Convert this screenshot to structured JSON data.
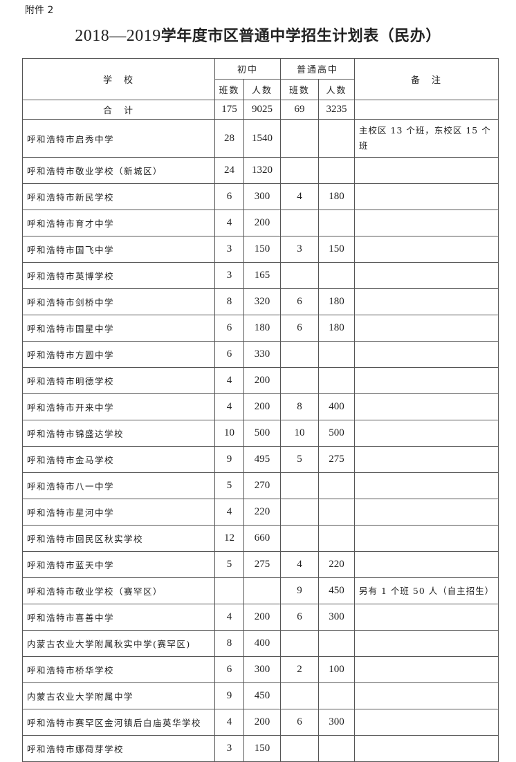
{
  "attachment_label": "附件 2",
  "title_years": "2018—2019",
  "title_text": "学年度市区普通中学招生计划表（民办）",
  "header": {
    "school": "学　校",
    "junior": "初中",
    "senior": "普通高中",
    "notes": "备　注",
    "classes": "班数",
    "students": "人数"
  },
  "total": {
    "label": "合　计",
    "jc": "175",
    "js": "9025",
    "sc": "69",
    "ss": "3235",
    "note": ""
  },
  "rows": [
    {
      "school": "呼和浩特市启秀中学",
      "jc": "28",
      "js": "1540",
      "sc": "",
      "ss": "",
      "note": "主校区 13 个班，东校区 15 个班"
    },
    {
      "school": "呼和浩特市敬业学校（新城区）",
      "jc": "24",
      "js": "1320",
      "sc": "",
      "ss": "",
      "note": ""
    },
    {
      "school": "呼和浩特市新民学校",
      "jc": "6",
      "js": "300",
      "sc": "4",
      "ss": "180",
      "note": ""
    },
    {
      "school": "呼和浩特市育才中学",
      "jc": "4",
      "js": "200",
      "sc": "",
      "ss": "",
      "note": ""
    },
    {
      "school": "呼和浩特市国飞中学",
      "jc": "3",
      "js": "150",
      "sc": "3",
      "ss": "150",
      "note": ""
    },
    {
      "school": "呼和浩特市英博学校",
      "jc": "3",
      "js": "165",
      "sc": "",
      "ss": "",
      "note": ""
    },
    {
      "school": "呼和浩特市剑桥中学",
      "jc": "8",
      "js": "320",
      "sc": "6",
      "ss": "180",
      "note": ""
    },
    {
      "school": "呼和浩特市国星中学",
      "jc": "6",
      "js": "180",
      "sc": "6",
      "ss": "180",
      "note": ""
    },
    {
      "school": "呼和浩特市方圆中学",
      "jc": "6",
      "js": "330",
      "sc": "",
      "ss": "",
      "note": ""
    },
    {
      "school": "呼和浩特市明德学校",
      "jc": "4",
      "js": "200",
      "sc": "",
      "ss": "",
      "note": ""
    },
    {
      "school": "呼和浩特市开来中学",
      "jc": "4",
      "js": "200",
      "sc": "8",
      "ss": "400",
      "note": ""
    },
    {
      "school": "呼和浩特市锦盛达学校",
      "jc": "10",
      "js": "500",
      "sc": "10",
      "ss": "500",
      "note": ""
    },
    {
      "school": "呼和浩特市金马学校",
      "jc": "9",
      "js": "495",
      "sc": "5",
      "ss": "275",
      "note": ""
    },
    {
      "school": "呼和浩特市八一中学",
      "jc": "5",
      "js": "270",
      "sc": "",
      "ss": "",
      "note": ""
    },
    {
      "school": "呼和浩特市星河中学",
      "jc": "4",
      "js": "220",
      "sc": "",
      "ss": "",
      "note": ""
    },
    {
      "school": "呼和浩特市回民区秋实学校",
      "jc": "12",
      "js": "660",
      "sc": "",
      "ss": "",
      "note": ""
    },
    {
      "school": "呼和浩特市蓝天中学",
      "jc": "5",
      "js": "275",
      "sc": "4",
      "ss": "220",
      "note": ""
    },
    {
      "school": "呼和浩特市敬业学校（赛罕区）",
      "jc": "",
      "js": "",
      "sc": "9",
      "ss": "450",
      "note": "另有 1 个班 50 人（自主招生）"
    },
    {
      "school": "呼和浩特市喜善中学",
      "jc": "4",
      "js": "200",
      "sc": "6",
      "ss": "300",
      "note": ""
    },
    {
      "school": "内蒙古农业大学附属秋实中学(赛罕区)",
      "jc": "8",
      "js": "400",
      "sc": "",
      "ss": "",
      "note": ""
    },
    {
      "school": "呼和浩特市桥华学校",
      "jc": "6",
      "js": "300",
      "sc": "2",
      "ss": "100",
      "note": ""
    },
    {
      "school": "内蒙古农业大学附属中学",
      "jc": "9",
      "js": "450",
      "sc": "",
      "ss": "",
      "note": ""
    },
    {
      "school": "呼和浩特市赛罕区金河镇后白庙英华学校",
      "jc": "4",
      "js": "200",
      "sc": "6",
      "ss": "300",
      "note": ""
    },
    {
      "school": "呼和浩特市娜荷芽学校",
      "jc": "3",
      "js": "150",
      "sc": "",
      "ss": "",
      "note": ""
    }
  ]
}
